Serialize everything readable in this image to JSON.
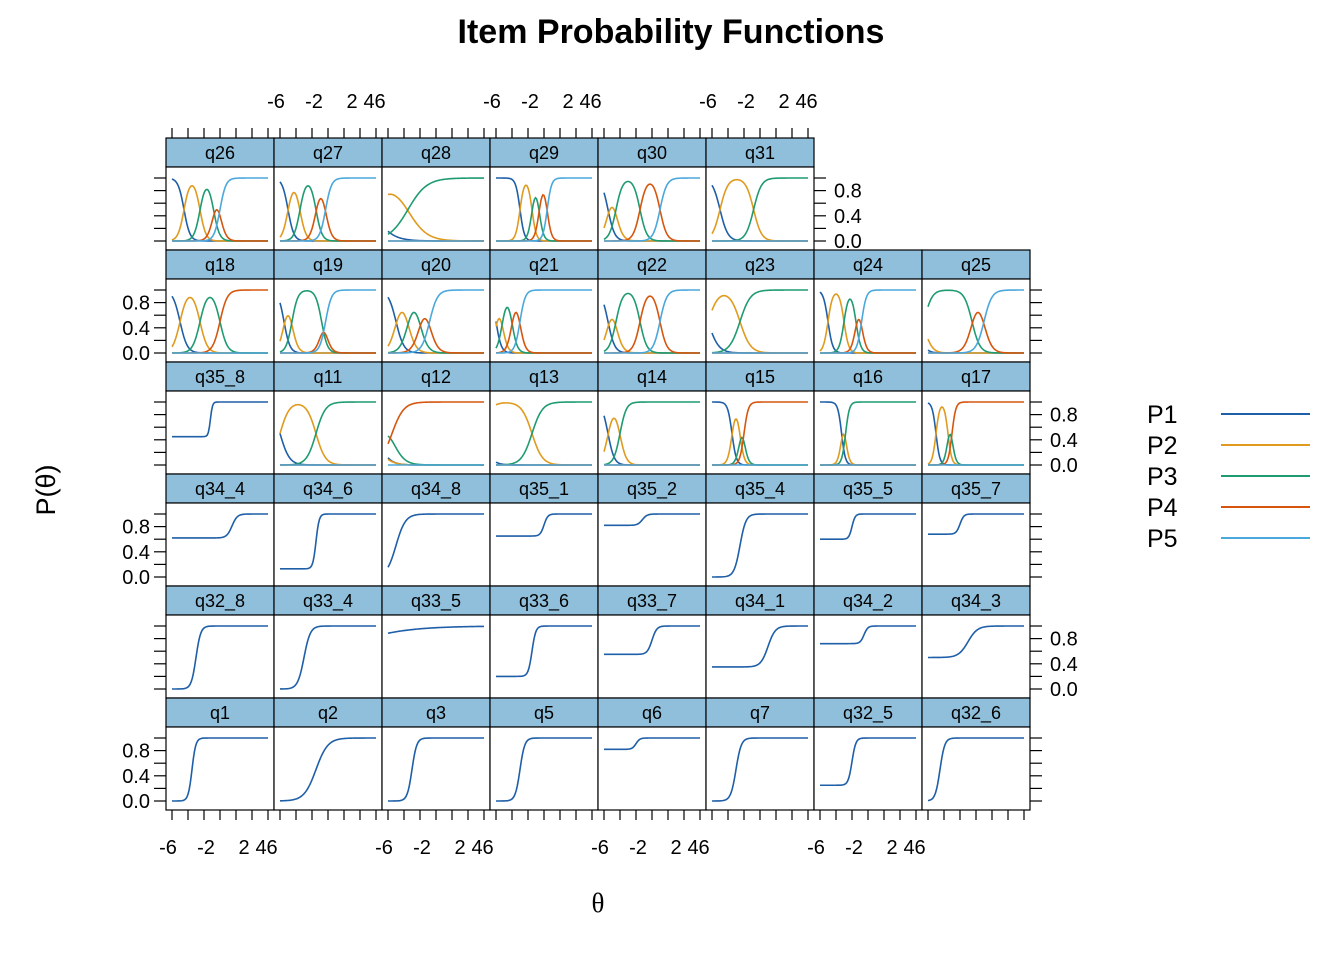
{
  "chart_data": {
    "type": "line",
    "title": "Item Probability Functions",
    "xlabel": "θ",
    "ylabel": "P(θ)",
    "xlim": [
      -6,
      6
    ],
    "ylim": [
      0,
      1
    ],
    "x_tick_labels": [
      "-6",
      "-2",
      "2",
      "4",
      "6"
    ],
    "y_tick_labels": [
      "0.0",
      "0.4",
      "0.8"
    ],
    "legend": {
      "position": "right",
      "entries": [
        {
          "name": "P1",
          "color": "#1F5FA8"
        },
        {
          "name": "P2",
          "color": "#E09A1E"
        },
        {
          "name": "P3",
          "color": "#1F9B72"
        },
        {
          "name": "P4",
          "color": "#D6560E"
        },
        {
          "name": "P5",
          "color": "#4BA8DC"
        }
      ]
    },
    "strip_color": "#8FBFDB",
    "rows": [
      {
        "row": 1,
        "panels": [
          {
            "name": "q26",
            "model": "graded",
            "a": 1.6,
            "b": [
              -4.5,
              -2.5,
              -0.8,
              0.0
            ]
          },
          {
            "name": "q27",
            "model": "graded",
            "a": 1.6,
            "b": [
              -5.0,
              -3.5,
              -1.5,
              -0.3
            ]
          },
          {
            "name": "q28",
            "model": "graded",
            "a": 0.5,
            "b": [
              -8.0,
              -3.5,
              14.0,
              22.0
            ]
          },
          {
            "name": "q29",
            "model": "graded",
            "a": 2.2,
            "b": [
              -3.0,
              -1.5,
              -0.6,
              0.4
            ]
          },
          {
            "name": "q30",
            "model": "graded",
            "a": 1.4,
            "b": [
              -5.5,
              -4.5,
              -1.5,
              1.0
            ]
          },
          {
            "name": "q31",
            "model": "graded",
            "a": 1.2,
            "b": [
              -5.0,
              -0.8,
              25.0,
              30.0
            ]
          }
        ]
      },
      {
        "row": 2,
        "panels": [
          {
            "name": "q18",
            "model": "graded",
            "a": 1.3,
            "b": [
              -5.0,
              -2.5,
              0.0,
              25.0
            ]
          },
          {
            "name": "q19",
            "model": "graded",
            "a": 1.6,
            "b": [
              -5.5,
              -4.5,
              -0.8,
              -0.3
            ]
          },
          {
            "name": "q20",
            "model": "graded",
            "a": 1.2,
            "b": [
              -5.0,
              -3.5,
              -2.0,
              -0.8
            ]
          },
          {
            "name": "q21",
            "model": "graded",
            "a": 1.8,
            "b": [
              -6.0,
              -5.2,
              -4.0,
              -3.0
            ]
          },
          {
            "name": "q22",
            "model": "graded",
            "a": 1.4,
            "b": [
              -5.5,
              -4.5,
              -1.5,
              1.0
            ]
          },
          {
            "name": "q23",
            "model": "graded",
            "a": 0.9,
            "b": [
              -6.5,
              -2.5,
              25.0,
              30.0
            ]
          },
          {
            "name": "q24",
            "model": "graded",
            "a": 2.0,
            "b": [
              -5.0,
              -3.0,
              -1.5,
              -0.8
            ]
          },
          {
            "name": "q25",
            "model": "graded",
            "a": 1.2,
            "b": [
              -7.5,
              -6.5,
              -0.5,
              1.0
            ]
          }
        ]
      },
      {
        "row": 3,
        "panels": [
          {
            "name": "q35_8",
            "model": "3pl",
            "a": 4.5,
            "b": -1.2,
            "c": 0.45
          },
          {
            "name": "q11",
            "model": "graded",
            "a": 1.0,
            "b": [
              -6.0,
              -1.5,
              25.0,
              30.0
            ]
          },
          {
            "name": "q12",
            "model": "graded",
            "a": 0.8,
            "b": [
              -7.5,
              -7.0,
              -5.5,
              25.0
            ]
          },
          {
            "name": "q13",
            "model": "graded",
            "a": 0.9,
            "b": [
              -8.0,
              -1.5,
              25.0,
              30.0
            ]
          },
          {
            "name": "q14",
            "model": "graded",
            "a": 1.5,
            "b": [
              -5.5,
              -4.0,
              25.0,
              30.0
            ]
          },
          {
            "name": "q15",
            "model": "graded",
            "a": 2.2,
            "b": [
              -3.5,
              -2.5,
              -2.0,
              25.0
            ]
          },
          {
            "name": "q16",
            "model": "graded",
            "a": 2.5,
            "b": [
              -3.3,
              -2.8,
              25.0,
              30.0
            ]
          },
          {
            "name": "q17",
            "model": "graded",
            "a": 2.5,
            "b": [
              -5.0,
              -3.5,
              -3.0,
              25.0
            ]
          }
        ]
      },
      {
        "row": 4,
        "panels": [
          {
            "name": "q34_4",
            "model": "3pl",
            "a": 1.8,
            "b": 1.5,
            "c": 0.62
          },
          {
            "name": "q34_6",
            "model": "3pl",
            "a": 3.0,
            "b": -1.5,
            "c": 0.13
          },
          {
            "name": "q34_8",
            "model": "3pl",
            "a": 1.0,
            "b": -5.0,
            "c": 0.0
          },
          {
            "name": "q35_1",
            "model": "3pl",
            "a": 2.5,
            "b": 0.0,
            "c": 0.65
          },
          {
            "name": "q35_2",
            "model": "3pl",
            "a": 2.0,
            "b": -1.2,
            "c": 0.82
          },
          {
            "name": "q35_4",
            "model": "3pl",
            "a": 1.6,
            "b": -2.5,
            "c": 0.0
          },
          {
            "name": "q35_5",
            "model": "3pl",
            "a": 3.0,
            "b": -2.0,
            "c": 0.6
          },
          {
            "name": "q35_7",
            "model": "3pl",
            "a": 2.5,
            "b": -2.0,
            "c": 0.68
          }
        ]
      },
      {
        "row": 5,
        "panels": [
          {
            "name": "q32_8",
            "model": "3pl",
            "a": 2.0,
            "b": -3.0,
            "c": 0.0
          },
          {
            "name": "q33_4",
            "model": "3pl",
            "a": 1.5,
            "b": -3.0,
            "c": 0.0
          },
          {
            "name": "q33_5",
            "model": "3pl",
            "a": 0.15,
            "b": -14.0,
            "c": 0.0
          },
          {
            "name": "q33_6",
            "model": "3pl",
            "a": 2.5,
            "b": -1.5,
            "c": 0.2
          },
          {
            "name": "q33_7",
            "model": "3pl",
            "a": 2.0,
            "b": 0.0,
            "c": 0.55
          },
          {
            "name": "q34_1",
            "model": "3pl",
            "a": 1.3,
            "b": 1.0,
            "c": 0.35
          },
          {
            "name": "q34_2",
            "model": "3pl",
            "a": 2.5,
            "b": -0.5,
            "c": 0.72
          },
          {
            "name": "q34_3",
            "model": "3pl",
            "a": 1.0,
            "b": -1.0,
            "c": 0.5
          }
        ]
      },
      {
        "row": 6,
        "panels": [
          {
            "name": "q1",
            "model": "3pl",
            "a": 2.5,
            "b": -3.5,
            "c": 0.0
          },
          {
            "name": "q2",
            "model": "3pl",
            "a": 0.8,
            "b": -1.5,
            "c": 0.0
          },
          {
            "name": "q3",
            "model": "3pl",
            "a": 2.0,
            "b": -3.0,
            "c": 0.0
          },
          {
            "name": "q5",
            "model": "3pl",
            "a": 2.0,
            "b": -3.0,
            "c": 0.0
          },
          {
            "name": "q6",
            "model": "3pl",
            "a": 2.5,
            "b": -2.0,
            "c": 0.82
          },
          {
            "name": "q7",
            "model": "3pl",
            "a": 1.8,
            "b": -3.0,
            "c": 0.0
          },
          {
            "name": "q32_5",
            "model": "3pl",
            "a": 2.5,
            "b": -2.0,
            "c": 0.25
          },
          {
            "name": "q32_6",
            "model": "3pl",
            "a": 2.0,
            "b": -4.5,
            "c": 0.0
          }
        ]
      }
    ]
  }
}
